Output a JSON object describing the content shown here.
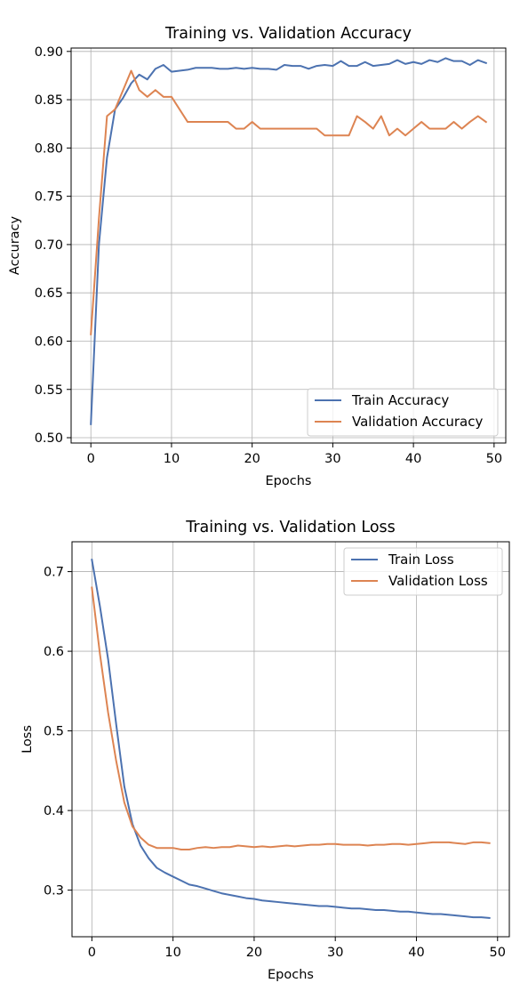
{
  "chart_data": [
    {
      "type": "line",
      "title": "Training vs. Validation Accuracy",
      "xlabel": "Epochs",
      "ylabel": "Accuracy",
      "xlim": [
        -2.45,
        51.45
      ],
      "ylim": [
        0.4945,
        0.9035
      ],
      "xticks": [
        0,
        10,
        20,
        30,
        40,
        50
      ],
      "yticks": [
        0.5,
        0.55,
        0.6,
        0.65,
        0.7,
        0.75,
        0.8,
        0.85,
        0.9
      ],
      "ytick_labels": [
        "0.50",
        "0.55",
        "0.60",
        "0.65",
        "0.70",
        "0.75",
        "0.80",
        "0.85",
        "0.90"
      ],
      "xtick_labels": [
        "0",
        "10",
        "20",
        "30",
        "40",
        "50"
      ],
      "grid": true,
      "legend_position": "lower-right",
      "x": [
        0,
        1,
        2,
        3,
        4,
        5,
        6,
        7,
        8,
        9,
        10,
        11,
        12,
        13,
        14,
        15,
        16,
        17,
        18,
        19,
        20,
        21,
        22,
        23,
        24,
        25,
        26,
        27,
        28,
        29,
        30,
        31,
        32,
        33,
        34,
        35,
        36,
        37,
        38,
        39,
        40,
        41,
        42,
        43,
        44,
        45,
        46,
        47,
        48,
        49
      ],
      "series": [
        {
          "name": "Train Accuracy",
          "color": "#4c72b0",
          "values": [
            0.514,
            0.7,
            0.79,
            0.84,
            0.852,
            0.867,
            0.876,
            0.871,
            0.882,
            0.886,
            0.879,
            0.88,
            0.881,
            0.883,
            0.883,
            0.883,
            0.882,
            0.882,
            0.883,
            0.882,
            0.883,
            0.882,
            0.882,
            0.881,
            0.886,
            0.885,
            0.885,
            0.882,
            0.885,
            0.886,
            0.885,
            0.89,
            0.885,
            0.885,
            0.889,
            0.885,
            0.886,
            0.887,
            0.891,
            0.887,
            0.889,
            0.887,
            0.891,
            0.889,
            0.893,
            0.89,
            0.89,
            0.886,
            0.891,
            0.888
          ]
        },
        {
          "name": "Validation Accuracy",
          "color": "#dd8452",
          "values": [
            0.607,
            0.727,
            0.833,
            0.84,
            0.86,
            0.88,
            0.86,
            0.853,
            0.86,
            0.853,
            0.853,
            0.84,
            0.827,
            0.827,
            0.827,
            0.827,
            0.827,
            0.827,
            0.82,
            0.82,
            0.827,
            0.82,
            0.82,
            0.82,
            0.82,
            0.82,
            0.82,
            0.82,
            0.82,
            0.813,
            0.813,
            0.813,
            0.813,
            0.833,
            0.827,
            0.82,
            0.833,
            0.813,
            0.82,
            0.813,
            0.82,
            0.827,
            0.82,
            0.82,
            0.82,
            0.827,
            0.82,
            0.827,
            0.833,
            0.827
          ]
        }
      ]
    },
    {
      "type": "line",
      "title": "Training vs. Validation Loss",
      "xlabel": "Epochs",
      "ylabel": "Loss",
      "xlim": [
        -2.45,
        51.45
      ],
      "ylim": [
        0.2415,
        0.7375
      ],
      "xticks": [
        0,
        10,
        20,
        30,
        40,
        50
      ],
      "yticks": [
        0.3,
        0.4,
        0.5,
        0.6,
        0.7
      ],
      "ytick_labels": [
        "0.3",
        "0.4",
        "0.5",
        "0.6",
        "0.7"
      ],
      "xtick_labels": [
        "0",
        "10",
        "20",
        "30",
        "40",
        "50"
      ],
      "grid": true,
      "legend_position": "upper-right",
      "x": [
        0,
        1,
        2,
        3,
        4,
        5,
        6,
        7,
        8,
        9,
        10,
        11,
        12,
        13,
        14,
        15,
        16,
        17,
        18,
        19,
        20,
        21,
        22,
        23,
        24,
        25,
        26,
        27,
        28,
        29,
        30,
        31,
        32,
        33,
        34,
        35,
        36,
        37,
        38,
        39,
        40,
        41,
        42,
        43,
        44,
        45,
        46,
        47,
        48,
        49
      ],
      "series": [
        {
          "name": "Train Loss",
          "color": "#4c72b0",
          "values": [
            0.715,
            0.656,
            0.59,
            0.508,
            0.43,
            0.383,
            0.356,
            0.34,
            0.328,
            0.322,
            0.317,
            0.312,
            0.307,
            0.305,
            0.302,
            0.299,
            0.296,
            0.294,
            0.292,
            0.29,
            0.289,
            0.287,
            0.286,
            0.285,
            0.284,
            0.283,
            0.282,
            0.281,
            0.28,
            0.28,
            0.279,
            0.278,
            0.277,
            0.277,
            0.276,
            0.275,
            0.275,
            0.274,
            0.273,
            0.273,
            0.272,
            0.271,
            0.27,
            0.27,
            0.269,
            0.268,
            0.267,
            0.266,
            0.266,
            0.265
          ]
        },
        {
          "name": "Validation Loss",
          "color": "#dd8452",
          "values": [
            0.68,
            0.596,
            0.523,
            0.462,
            0.41,
            0.38,
            0.366,
            0.357,
            0.353,
            0.353,
            0.353,
            0.351,
            0.351,
            0.353,
            0.354,
            0.353,
            0.354,
            0.354,
            0.356,
            0.355,
            0.354,
            0.355,
            0.354,
            0.355,
            0.356,
            0.355,
            0.356,
            0.357,
            0.357,
            0.358,
            0.358,
            0.357,
            0.357,
            0.357,
            0.356,
            0.357,
            0.357,
            0.358,
            0.358,
            0.357,
            0.358,
            0.359,
            0.36,
            0.36,
            0.36,
            0.359,
            0.358,
            0.36,
            0.36,
            0.359
          ]
        }
      ]
    }
  ]
}
